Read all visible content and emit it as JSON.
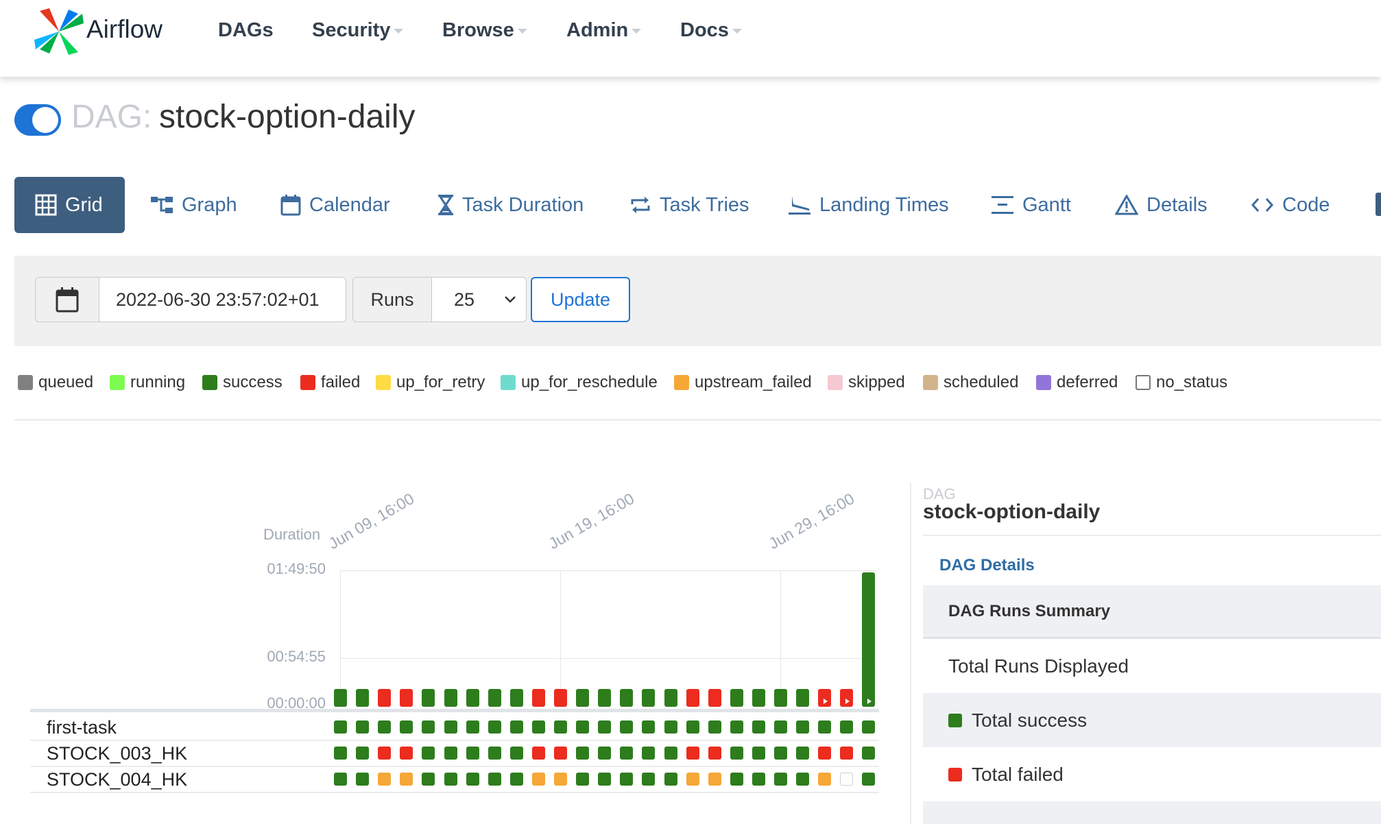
{
  "app": {
    "name": "Airflow"
  },
  "nav": {
    "items": [
      {
        "label": "DAGs",
        "dropdown": false
      },
      {
        "label": "Security",
        "dropdown": true
      },
      {
        "label": "Browse",
        "dropdown": true
      },
      {
        "label": "Admin",
        "dropdown": true
      },
      {
        "label": "Docs",
        "dropdown": true
      }
    ]
  },
  "dag": {
    "prefix": "DAG:",
    "name": "stock-option-daily",
    "active": true
  },
  "tabs": [
    {
      "label": "Grid",
      "icon": "grid-icon",
      "active": true
    },
    {
      "label": "Graph",
      "icon": "graph-icon"
    },
    {
      "label": "Calendar",
      "icon": "calendar-icon"
    },
    {
      "label": "Task Duration",
      "icon": "hourglass-icon"
    },
    {
      "label": "Task Tries",
      "icon": "retry-icon"
    },
    {
      "label": "Landing Times",
      "icon": "plane-landing-icon"
    },
    {
      "label": "Gantt",
      "icon": "gantt-icon"
    },
    {
      "label": "Details",
      "icon": "warning-triangle-icon"
    },
    {
      "label": "Code",
      "icon": "code-icon"
    }
  ],
  "filter": {
    "base_date": "2022-06-30 23:57:02+01",
    "runs_label": "Runs",
    "runs_value": "25",
    "update_label": "Update"
  },
  "legend": [
    {
      "label": "queued",
      "color": "#808080"
    },
    {
      "label": "running",
      "color": "#7CFC51"
    },
    {
      "label": "success",
      "color": "#2E7D1D"
    },
    {
      "label": "failed",
      "color": "#EB2C1E"
    },
    {
      "label": "up_for_retry",
      "color": "#FFDB44"
    },
    {
      "label": "up_for_reschedule",
      "color": "#6FDBCE"
    },
    {
      "label": "upstream_failed",
      "color": "#F5A738"
    },
    {
      "label": "skipped",
      "color": "#F6C8D1"
    },
    {
      "label": "scheduled",
      "color": "#D2B48C"
    },
    {
      "label": "deferred",
      "color": "#9275D8"
    },
    {
      "label": "no_status",
      "color": "#ffffff"
    }
  ],
  "grid": {
    "duration_label": "Duration",
    "y_ticks": [
      "01:49:50",
      "00:54:55",
      "00:00:00"
    ],
    "date_ticks": [
      {
        "label": "Jun 09, 16:00",
        "run_index": 0
      },
      {
        "label": "Jun 19, 16:00",
        "run_index": 10
      },
      {
        "label": "Jun 29, 16:00",
        "run_index": 20
      }
    ],
    "runs": [
      {
        "state": "success",
        "duration": 0.06,
        "play": false
      },
      {
        "state": "success",
        "duration": 0.06,
        "play": false
      },
      {
        "state": "failed",
        "duration": 0.06,
        "play": false
      },
      {
        "state": "failed",
        "duration": 0.06,
        "play": false
      },
      {
        "state": "success",
        "duration": 0.06,
        "play": false
      },
      {
        "state": "success",
        "duration": 0.06,
        "play": false
      },
      {
        "state": "success",
        "duration": 0.06,
        "play": false
      },
      {
        "state": "success",
        "duration": 0.06,
        "play": false
      },
      {
        "state": "success",
        "duration": 0.06,
        "play": false
      },
      {
        "state": "failed",
        "duration": 0.06,
        "play": false
      },
      {
        "state": "failed",
        "duration": 0.06,
        "play": false
      },
      {
        "state": "success",
        "duration": 0.06,
        "play": false
      },
      {
        "state": "success",
        "duration": 0.06,
        "play": false
      },
      {
        "state": "success",
        "duration": 0.06,
        "play": false
      },
      {
        "state": "success",
        "duration": 0.06,
        "play": false
      },
      {
        "state": "success",
        "duration": 0.06,
        "play": false
      },
      {
        "state": "failed",
        "duration": 0.06,
        "play": false
      },
      {
        "state": "failed",
        "duration": 0.06,
        "play": false
      },
      {
        "state": "success",
        "duration": 0.06,
        "play": false
      },
      {
        "state": "success",
        "duration": 0.06,
        "play": false
      },
      {
        "state": "success",
        "duration": 0.06,
        "play": false
      },
      {
        "state": "success",
        "duration": 0.06,
        "play": false
      },
      {
        "state": "failed",
        "duration": 0.06,
        "play": true
      },
      {
        "state": "failed",
        "duration": 0.06,
        "play": true
      },
      {
        "state": "success",
        "duration": 1.0,
        "play": true
      }
    ],
    "tasks": [
      {
        "name": "first-task",
        "states": [
          "success",
          "success",
          "success",
          "success",
          "success",
          "success",
          "success",
          "success",
          "success",
          "success",
          "success",
          "success",
          "success",
          "success",
          "success",
          "success",
          "success",
          "success",
          "success",
          "success",
          "success",
          "success",
          "success",
          "success",
          "success"
        ]
      },
      {
        "name": "STOCK_003_HK",
        "states": [
          "success",
          "success",
          "failed",
          "failed",
          "success",
          "success",
          "success",
          "success",
          "success",
          "failed",
          "failed",
          "success",
          "success",
          "success",
          "success",
          "success",
          "failed",
          "failed",
          "success",
          "success",
          "success",
          "success",
          "failed",
          "failed",
          "success"
        ]
      },
      {
        "name": "STOCK_004_HK",
        "states": [
          "success",
          "success",
          "upstream_failed",
          "upstream_failed",
          "success",
          "success",
          "success",
          "success",
          "success",
          "upstream_failed",
          "upstream_failed",
          "success",
          "success",
          "success",
          "success",
          "success",
          "upstream_failed",
          "upstream_failed",
          "success",
          "success",
          "success",
          "success",
          "upstream_failed",
          "no_status",
          "success"
        ]
      }
    ]
  },
  "panel": {
    "kicker": "DAG",
    "name": "stock-option-daily",
    "details_link": "DAG Details",
    "summary_title": "DAG Runs Summary",
    "rows": [
      {
        "label": "Total Runs Displayed",
        "dot": null
      },
      {
        "label": "Total success",
        "dot": "#2E7D1D"
      },
      {
        "label": "Total failed",
        "dot": "#EB2C1E"
      }
    ]
  }
}
